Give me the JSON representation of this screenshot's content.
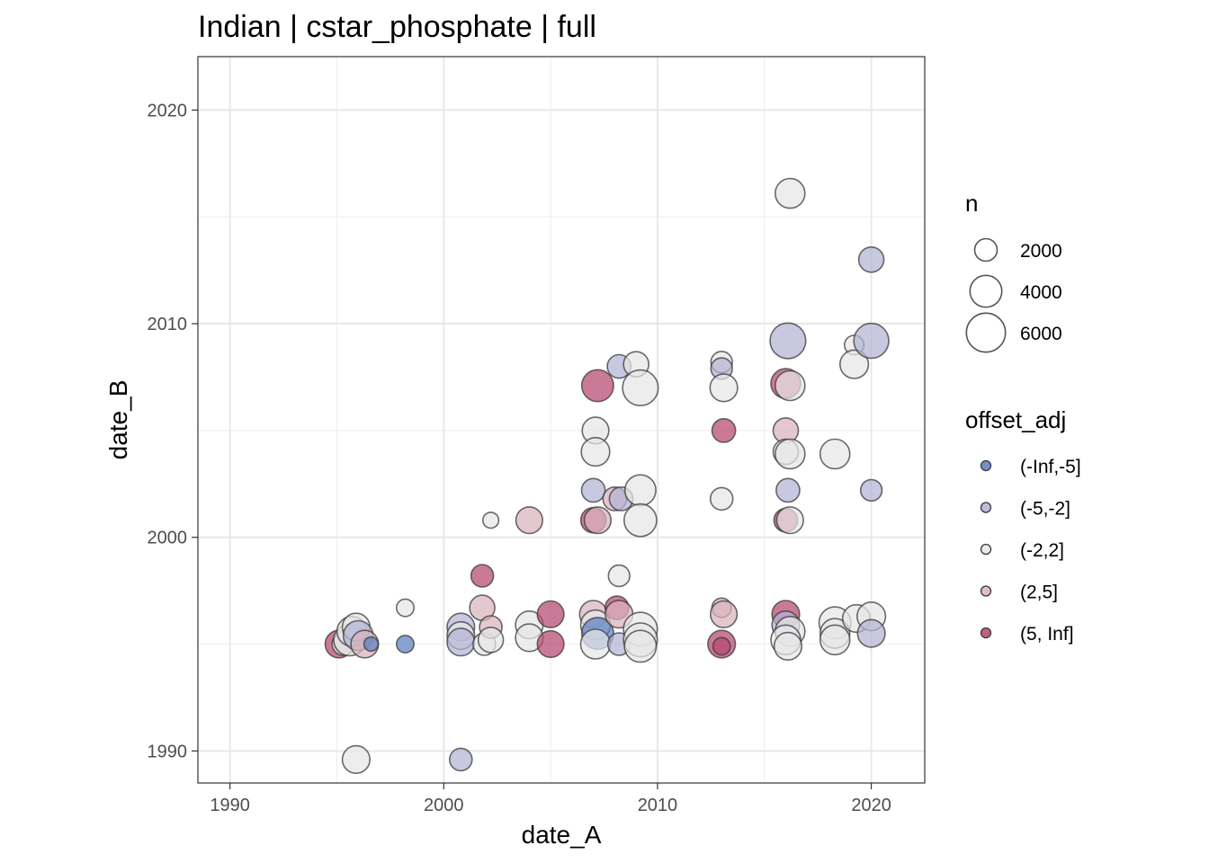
{
  "chart_data": {
    "type": "scatter",
    "title": "Indian | cstar_phosphate | full",
    "xlabel": "date_A",
    "ylabel": "date_B",
    "xlim": [
      1988.5,
      2022.5
    ],
    "ylim": [
      1988.5,
      2022.5
    ],
    "xticks": [
      "1990",
      "2000",
      "2010",
      "2020"
    ],
    "yticks": [
      "1990",
      "2000",
      "2010",
      "2020"
    ],
    "grid": true,
    "size_legend": {
      "title": "n",
      "entries": [
        {
          "label": "2000",
          "value": 2000
        },
        {
          "label": "4000",
          "value": 4000
        },
        {
          "label": "6000",
          "value": 6000
        }
      ]
    },
    "color_legend": {
      "title": "offset_adj",
      "entries": [
        {
          "label": "(-Inf,-5]",
          "color": "#5b7fbf"
        },
        {
          "label": "(-5,-2]",
          "color": "#b3b3d6"
        },
        {
          "label": "(-2,2]",
          "color": "#e6e6e6"
        },
        {
          "label": "(2,5]",
          "color": "#d9b3be"
        },
        {
          "label": "(5, Inf]",
          "color": "#b5466f"
        }
      ]
    },
    "points": [
      {
        "x": 1995.1,
        "y": 1995.0,
        "n": 3000,
        "group": "(5, Inf]"
      },
      {
        "x": 1995.3,
        "y": 1995.0,
        "n": 2000,
        "group": "(-2,2]"
      },
      {
        "x": 1995.6,
        "y": 1995.2,
        "n": 4000,
        "group": "(-2,2]"
      },
      {
        "x": 1995.7,
        "y": 1995.6,
        "n": 3500,
        "group": "(-2,2]"
      },
      {
        "x": 1995.9,
        "y": 1995.8,
        "n": 3000,
        "group": "(-2,2]"
      },
      {
        "x": 1996.0,
        "y": 1995.4,
        "n": 3500,
        "group": "(-5,-2]"
      },
      {
        "x": 1996.3,
        "y": 1995.0,
        "n": 3000,
        "group": "(2,5]"
      },
      {
        "x": 1996.6,
        "y": 1995.0,
        "n": 800,
        "group": "(-Inf,-5]"
      },
      {
        "x": 1995.9,
        "y": 1989.6,
        "n": 3000,
        "group": "(-2,2]"
      },
      {
        "x": 1998.2,
        "y": 1996.7,
        "n": 1200,
        "group": "(-2,2]"
      },
      {
        "x": 1998.2,
        "y": 1995.0,
        "n": 1200,
        "group": "(-Inf,-5]"
      },
      {
        "x": 2000.8,
        "y": 1995.8,
        "n": 3000,
        "group": "(-5,-2]"
      },
      {
        "x": 2000.8,
        "y": 1995.4,
        "n": 3000,
        "group": "(-2,2]"
      },
      {
        "x": 2000.8,
        "y": 1995.1,
        "n": 3000,
        "group": "(-5,-2]"
      },
      {
        "x": 2000.8,
        "y": 1989.6,
        "n": 2000,
        "group": "(-5,-2]"
      },
      {
        "x": 2001.8,
        "y": 1998.2,
        "n": 2000,
        "group": "(5, Inf]"
      },
      {
        "x": 2001.8,
        "y": 1996.7,
        "n": 2500,
        "group": "(2,5]"
      },
      {
        "x": 2001.9,
        "y": 1995.0,
        "n": 2000,
        "group": "(-2,2]"
      },
      {
        "x": 2002.2,
        "y": 2000.8,
        "n": 1000,
        "group": "(-2,2]"
      },
      {
        "x": 2002.2,
        "y": 1995.8,
        "n": 2000,
        "group": "(2,5]"
      },
      {
        "x": 2002.2,
        "y": 1995.2,
        "n": 2500,
        "group": "(-2,2]"
      },
      {
        "x": 2004.0,
        "y": 2000.8,
        "n": 2800,
        "group": "(2,5]"
      },
      {
        "x": 2004.0,
        "y": 1995.9,
        "n": 3000,
        "group": "(-2,2]"
      },
      {
        "x": 2004.0,
        "y": 1995.3,
        "n": 3000,
        "group": "(-2,2]"
      },
      {
        "x": 2005.0,
        "y": 1996.4,
        "n": 2800,
        "group": "(5, Inf]"
      },
      {
        "x": 2005.0,
        "y": 1995.0,
        "n": 2800,
        "group": "(5, Inf]"
      },
      {
        "x": 2007.2,
        "y": 2007.1,
        "n": 4000,
        "group": "(5, Inf]"
      },
      {
        "x": 2007.1,
        "y": 2005.0,
        "n": 2800,
        "group": "(-2,2]"
      },
      {
        "x": 2007.1,
        "y": 2004.0,
        "n": 3200,
        "group": "(-2,2]"
      },
      {
        "x": 2007.0,
        "y": 2002.2,
        "n": 2200,
        "group": "(-5,-2]"
      },
      {
        "x": 2007.0,
        "y": 2000.8,
        "n": 2500,
        "group": "(5, Inf]"
      },
      {
        "x": 2007.2,
        "y": 2000.8,
        "n": 2800,
        "group": "(2,5]"
      },
      {
        "x": 2007.0,
        "y": 1996.4,
        "n": 3000,
        "group": "(2,5]"
      },
      {
        "x": 2007.1,
        "y": 1995.9,
        "n": 3500,
        "group": "(-2,2]"
      },
      {
        "x": 2007.2,
        "y": 1995.5,
        "n": 4000,
        "group": "(-Inf,-5]"
      },
      {
        "x": 2007.1,
        "y": 1995.0,
        "n": 3500,
        "group": "(-2,2]"
      },
      {
        "x": 2008.2,
        "y": 2008.0,
        "n": 2200,
        "group": "(-5,-2]"
      },
      {
        "x": 2008.0,
        "y": 2001.8,
        "n": 2200,
        "group": "(2,5]"
      },
      {
        "x": 2008.3,
        "y": 2001.8,
        "n": 2200,
        "group": "(-5,-2]"
      },
      {
        "x": 2008.2,
        "y": 1998.2,
        "n": 1800,
        "group": "(-2,2]"
      },
      {
        "x": 2008.1,
        "y": 1996.7,
        "n": 2200,
        "group": "(5, Inf]"
      },
      {
        "x": 2008.2,
        "y": 1996.4,
        "n": 3000,
        "group": "(2,5]"
      },
      {
        "x": 2008.2,
        "y": 1995.0,
        "n": 2000,
        "group": "(-5,-2]"
      },
      {
        "x": 2009.0,
        "y": 2008.1,
        "n": 2500,
        "group": "(-2,2]"
      },
      {
        "x": 2009.2,
        "y": 2007.0,
        "n": 5000,
        "group": "(-2,2]"
      },
      {
        "x": 2009.2,
        "y": 2002.2,
        "n": 3800,
        "group": "(-2,2]"
      },
      {
        "x": 2009.2,
        "y": 2000.8,
        "n": 4200,
        "group": "(-2,2]"
      },
      {
        "x": 2009.2,
        "y": 1995.7,
        "n": 4500,
        "group": "(-2,2]"
      },
      {
        "x": 2009.2,
        "y": 1995.2,
        "n": 4500,
        "group": "(-2,2]"
      },
      {
        "x": 2009.2,
        "y": 1994.9,
        "n": 4000,
        "group": "(-2,2]"
      },
      {
        "x": 2013.0,
        "y": 2008.2,
        "n": 1800,
        "group": "(-2,2]"
      },
      {
        "x": 2013.0,
        "y": 2007.9,
        "n": 1800,
        "group": "(-5,-2]"
      },
      {
        "x": 2013.1,
        "y": 2007.0,
        "n": 3000,
        "group": "(-2,2]"
      },
      {
        "x": 2013.1,
        "y": 2005.0,
        "n": 2200,
        "group": "(5, Inf]"
      },
      {
        "x": 2013.0,
        "y": 2001.8,
        "n": 2000,
        "group": "(-2,2]"
      },
      {
        "x": 2013.0,
        "y": 1996.7,
        "n": 1500,
        "group": "(2,5]"
      },
      {
        "x": 2013.1,
        "y": 1996.4,
        "n": 2800,
        "group": "(2,5]"
      },
      {
        "x": 2013.0,
        "y": 1995.0,
        "n": 3000,
        "group": "(5, Inf]"
      },
      {
        "x": 2013.0,
        "y": 1994.9,
        "n": 1200,
        "group": "(5, Inf]"
      },
      {
        "x": 2016.2,
        "y": 2016.1,
        "n": 3500,
        "group": "(-2,2]"
      },
      {
        "x": 2016.1,
        "y": 2009.2,
        "n": 5000,
        "group": "(-5,-2]"
      },
      {
        "x": 2016.0,
        "y": 2007.2,
        "n": 3500,
        "group": "(5, Inf]"
      },
      {
        "x": 2016.2,
        "y": 2007.1,
        "n": 3500,
        "group": "(-2,2]"
      },
      {
        "x": 2016.0,
        "y": 2005.0,
        "n": 2500,
        "group": "(2,5]"
      },
      {
        "x": 2016.0,
        "y": 2004.0,
        "n": 2500,
        "group": "(-2,2]"
      },
      {
        "x": 2016.2,
        "y": 2003.9,
        "n": 3500,
        "group": "(-2,2]"
      },
      {
        "x": 2016.1,
        "y": 2002.2,
        "n": 2200,
        "group": "(-5,-2]"
      },
      {
        "x": 2016.0,
        "y": 2000.8,
        "n": 2200,
        "group": "(5, Inf]"
      },
      {
        "x": 2016.2,
        "y": 2000.8,
        "n": 2800,
        "group": "(-2,2]"
      },
      {
        "x": 2016.0,
        "y": 1996.4,
        "n": 3000,
        "group": "(5, Inf]"
      },
      {
        "x": 2016.0,
        "y": 1995.9,
        "n": 3000,
        "group": "(-5,-2]"
      },
      {
        "x": 2016.2,
        "y": 1995.6,
        "n": 3500,
        "group": "(-2,2]"
      },
      {
        "x": 2016.0,
        "y": 1995.2,
        "n": 3500,
        "group": "(-2,2]"
      },
      {
        "x": 2016.1,
        "y": 1994.9,
        "n": 3000,
        "group": "(-2,2]"
      },
      {
        "x": 2018.3,
        "y": 2003.9,
        "n": 3500,
        "group": "(-2,2]"
      },
      {
        "x": 2018.3,
        "y": 1996.0,
        "n": 4000,
        "group": "(-2,2]"
      },
      {
        "x": 2018.3,
        "y": 1995.5,
        "n": 3500,
        "group": "(-2,2]"
      },
      {
        "x": 2018.3,
        "y": 1995.2,
        "n": 3500,
        "group": "(-2,2]"
      },
      {
        "x": 2019.2,
        "y": 2009.0,
        "n": 1500,
        "group": "(-2,2]"
      },
      {
        "x": 2019.2,
        "y": 2008.1,
        "n": 3200,
        "group": "(-2,2]"
      },
      {
        "x": 2019.3,
        "y": 1996.2,
        "n": 3000,
        "group": "(-2,2]"
      },
      {
        "x": 2020.0,
        "y": 2013.0,
        "n": 2500,
        "group": "(-5,-2]"
      },
      {
        "x": 2020.0,
        "y": 2009.2,
        "n": 4800,
        "group": "(-5,-2]"
      },
      {
        "x": 2020.0,
        "y": 2002.2,
        "n": 1800,
        "group": "(-5,-2]"
      },
      {
        "x": 2020.0,
        "y": 1996.3,
        "n": 3200,
        "group": "(-2,2]"
      },
      {
        "x": 2020.0,
        "y": 1995.5,
        "n": 3000,
        "group": "(-5,-2]"
      }
    ]
  }
}
